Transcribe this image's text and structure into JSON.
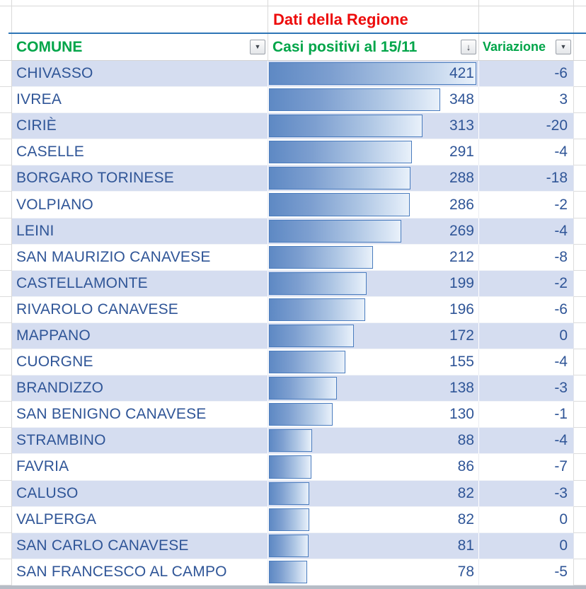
{
  "title": "Dati della Regione",
  "table": {
    "columns": {
      "comune": "COMUNE",
      "casi": "Casi positivi al 15/11",
      "variazione": "Variazione"
    },
    "rows": [
      {
        "comune": "CHIVASSO",
        "casi": 421,
        "variazione": -6
      },
      {
        "comune": "IVREA",
        "casi": 348,
        "variazione": 3
      },
      {
        "comune": "CIRIÈ",
        "casi": 313,
        "variazione": -20
      },
      {
        "comune": "CASELLE",
        "casi": 291,
        "variazione": -4
      },
      {
        "comune": "BORGARO TORINESE",
        "casi": 288,
        "variazione": -18
      },
      {
        "comune": "VOLPIANO",
        "casi": 286,
        "variazione": -2
      },
      {
        "comune": "LEINI",
        "casi": 269,
        "variazione": -4
      },
      {
        "comune": "SAN MAURIZIO CANAVESE",
        "casi": 212,
        "variazione": -8
      },
      {
        "comune": "CASTELLAMONTE",
        "casi": 199,
        "variazione": -2
      },
      {
        "comune": "RIVAROLO CANAVESE",
        "casi": 196,
        "variazione": -6
      },
      {
        "comune": "MAPPANO",
        "casi": 172,
        "variazione": 0
      },
      {
        "comune": "CUORGNE",
        "casi": 155,
        "variazione": -4
      },
      {
        "comune": "BRANDIZZO",
        "casi": 138,
        "variazione": -3
      },
      {
        "comune": "SAN BENIGNO CANAVESE",
        "casi": 130,
        "variazione": -1
      },
      {
        "comune": "STRAMBINO",
        "casi": 88,
        "variazione": -4
      },
      {
        "comune": "FAVRIA",
        "casi": 86,
        "variazione": -7
      },
      {
        "comune": "CALUSO",
        "casi": 82,
        "variazione": -3
      },
      {
        "comune": "VALPERGA",
        "casi": 82,
        "variazione": 0
      },
      {
        "comune": "SAN CARLO CANAVESE",
        "casi": 81,
        "variazione": 0
      },
      {
        "comune": "SAN FRANCESCO AL CAMPO",
        "casi": 78,
        "variazione": -5
      }
    ]
  },
  "icons": {
    "filter_dropdown": "▼",
    "sort_descending": "↓"
  },
  "colors": {
    "title_red": "#ed0c0c",
    "header_green": "#00a549",
    "text_blue": "#2f5597",
    "row_shade": "#d5ddf0",
    "divider_blue": "#2e75b6",
    "bar_border": "#4a7cbe",
    "bar_fill_start": "#5e89c4"
  },
  "chart_data": {
    "type": "bar",
    "title": "Casi positivi al 15/11 (data bars)",
    "categories": [
      "CHIVASSO",
      "IVREA",
      "CIRIÈ",
      "CASELLE",
      "BORGARO TORINESE",
      "VOLPIANO",
      "LEINI",
      "SAN MAURIZIO CANAVESE",
      "CASTELLAMONTE",
      "RIVAROLO CANAVESE",
      "MAPPANO",
      "CUORGNE",
      "BRANDIZZO",
      "SAN BENIGNO CANAVESE",
      "STRAMBINO",
      "FAVRIA",
      "CALUSO",
      "VALPERGA",
      "SAN CARLO CANAVESE",
      "SAN FRANCESCO AL CAMPO"
    ],
    "series": [
      {
        "name": "Casi positivi al 15/11",
        "values": [
          421,
          348,
          313,
          291,
          288,
          286,
          269,
          212,
          199,
          196,
          172,
          155,
          138,
          130,
          88,
          86,
          82,
          82,
          81,
          78
        ]
      },
      {
        "name": "Variazione",
        "values": [
          -6,
          3,
          -20,
          -4,
          -18,
          -2,
          -4,
          -8,
          -2,
          -6,
          0,
          -4,
          -3,
          -1,
          -4,
          -7,
          -3,
          0,
          0,
          -5
        ]
      }
    ],
    "xlim": [
      0,
      421
    ],
    "bar_scale_max": 421
  }
}
